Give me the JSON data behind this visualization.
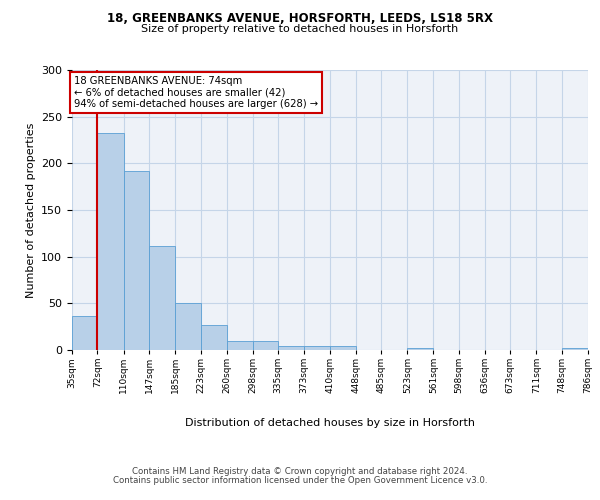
{
  "title1": "18, GREENBANKS AVENUE, HORSFORTH, LEEDS, LS18 5RX",
  "title2": "Size of property relative to detached houses in Horsforth",
  "xlabel": "Distribution of detached houses by size in Horsforth",
  "ylabel": "Number of detached properties",
  "bar_edges": [
    35,
    72,
    110,
    147,
    185,
    223,
    260,
    298,
    335,
    373,
    410,
    448,
    485,
    523,
    561,
    598,
    636,
    673,
    711,
    748,
    786
  ],
  "bar_heights": [
    36,
    232,
    192,
    111,
    50,
    27,
    10,
    10,
    4,
    4,
    4,
    0,
    0,
    2,
    0,
    0,
    0,
    0,
    0,
    2
  ],
  "bar_color": "#b8d0e8",
  "bar_edge_color": "#5a9fd4",
  "property_line_x": 72,
  "annotation_title": "18 GREENBANKS AVENUE: 74sqm",
  "annotation_line2": "← 6% of detached houses are smaller (42)",
  "annotation_line3": "94% of semi-detached houses are larger (628) →",
  "annotation_box_color": "#ffffff",
  "annotation_border_color": "#cc0000",
  "vline_color": "#cc0000",
  "ylim": [
    0,
    300
  ],
  "yticks": [
    0,
    50,
    100,
    150,
    200,
    250,
    300
  ],
  "tick_labels": [
    "35sqm",
    "72sqm",
    "110sqm",
    "147sqm",
    "185sqm",
    "223sqm",
    "260sqm",
    "298sqm",
    "335sqm",
    "373sqm",
    "410sqm",
    "448sqm",
    "485sqm",
    "523sqm",
    "561sqm",
    "598sqm",
    "636sqm",
    "673sqm",
    "711sqm",
    "748sqm",
    "786sqm"
  ],
  "footer1": "Contains HM Land Registry data © Crown copyright and database right 2024.",
  "footer2": "Contains public sector information licensed under the Open Government Licence v3.0.",
  "bg_color": "#eef2f8",
  "grid_color": "#c5d5e8"
}
